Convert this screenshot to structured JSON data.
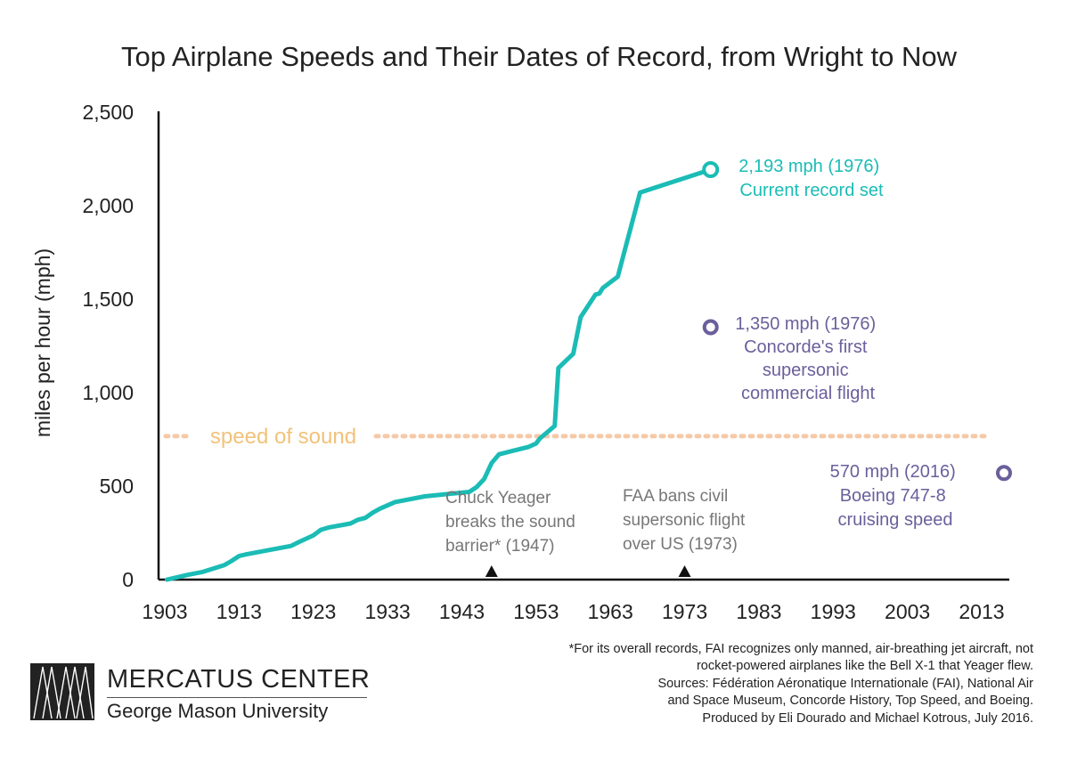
{
  "chart_data": {
    "type": "line",
    "title": "Top Airplane Speeds and Their Dates of Record, from Wright to Now",
    "ylabel": "miles per hour (mph)",
    "xlabel": "",
    "xlim": [
      1903,
      2016
    ],
    "ylim": [
      0,
      2500
    ],
    "xticks": [
      "1903",
      "1913",
      "1923",
      "1933",
      "1943",
      "1953",
      "1963",
      "1973",
      "1983",
      "1993",
      "2003",
      "2013"
    ],
    "yticks": [
      "0",
      "500",
      "1,000",
      "1,500",
      "2,000",
      "2,500"
    ],
    "grid": false,
    "colors": {
      "record": "#1bbcb5",
      "sound": "#f5c9a8",
      "sound_text": "#f1c27a",
      "reference": "#6b5f9c",
      "event": "#222222"
    },
    "series": [
      {
        "values": [
          [
            1903.3,
            0
          ],
          [
            1906,
            25
          ],
          [
            1908,
            40
          ],
          [
            1910,
            65
          ],
          [
            1911,
            77
          ],
          [
            1912,
            100
          ],
          [
            1913,
            126
          ],
          [
            1914,
            135
          ],
          [
            1920,
            180
          ],
          [
            1921,
            200
          ],
          [
            1923,
            236
          ],
          [
            1924,
            266
          ],
          [
            1925,
            278
          ],
          [
            1928,
            300
          ],
          [
            1929,
            320
          ],
          [
            1930,
            330
          ],
          [
            1931,
            358
          ],
          [
            1932,
            380
          ],
          [
            1934,
            415
          ],
          [
            1938,
            445
          ],
          [
            1944,
            469
          ],
          [
            1945,
            495
          ],
          [
            1946,
            538
          ],
          [
            1947,
            623
          ],
          [
            1948,
            670
          ],
          [
            1950,
            690
          ],
          [
            1952,
            710
          ],
          [
            1953,
            728
          ],
          [
            1953.5,
            755
          ],
          [
            1955.5,
            822
          ],
          [
            1956,
            1132
          ],
          [
            1958,
            1208
          ],
          [
            1959,
            1404
          ],
          [
            1961,
            1525
          ],
          [
            1961.5,
            1530
          ],
          [
            1962,
            1560
          ],
          [
            1964,
            1620
          ],
          [
            1965,
            1770
          ],
          [
            1967,
            2070
          ],
          [
            1976.5,
            2193
          ]
        ]
      }
    ],
    "reference_line": {
      "label": "speed of sound",
      "y": 767
    },
    "annotations": {
      "record": {
        "x": 1976.5,
        "y": 2193,
        "line1": "2,193 mph (1976)",
        "line2": "Current record set"
      },
      "concorde": {
        "x": 1976.5,
        "y": 1350,
        "line1": "1,350 mph (1976)",
        "line2": "Concorde's first",
        "line3": "supersonic",
        "line4": "commercial flight"
      },
      "boeing": {
        "x": 2016,
        "y": 570,
        "line1": "570 mph (2016)",
        "line2": "Boeing 747-8",
        "line3": "cruising speed"
      },
      "yeager": {
        "x": 1947,
        "line1": "Chuck Yeager",
        "line2": "breaks the sound",
        "line3": "barrier* (1947)"
      },
      "faa": {
        "x": 1973,
        "line1": "FAA bans civil",
        "line2": "supersonic flight",
        "line3": "over US (1973)"
      }
    }
  },
  "footnote": {
    "line1": "*For its overall records, FAI recognizes only manned, air-breathing jet aircraft, not",
    "line2": "rocket-powered airplanes like the Bell X-1 that Yeager flew.",
    "line3": "Sources: Fédération Aéronatique Internationale (FAI), National Air",
    "line4": "and Space Museum, Concorde History, Top Speed, and Boeing.",
    "line5": "Produced by Eli Dourado and Michael Kotrous, July 2016."
  },
  "logo": {
    "name": "MERCATUS CENTER",
    "sub": "George Mason University"
  }
}
